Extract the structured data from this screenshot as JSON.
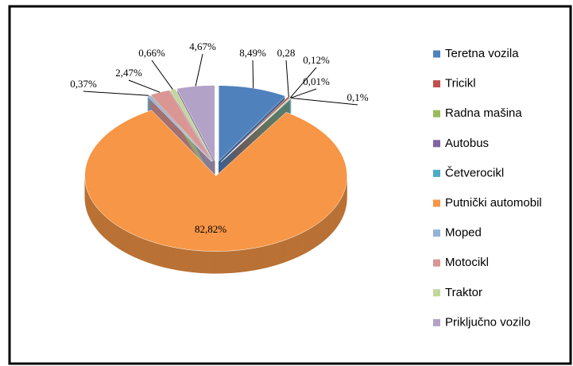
{
  "chart_data": {
    "type": "pie",
    "categories": [
      "Teretna vozila",
      "Tricikl",
      "Radna mašina",
      "Autobus",
      "Četverocikl",
      "Putnički automobil",
      "Moped",
      "Motocikl",
      "Traktor",
      "Priključno vozilo"
    ],
    "values": [
      8.49,
      0.28,
      0.12,
      0.01,
      0.1,
      82.82,
      0.37,
      2.47,
      0.66,
      4.67
    ],
    "value_labels": [
      "8,49%",
      "0,28",
      "0,12%",
      "0,01%",
      "0,1%",
      "82,82%",
      "0,37%",
      "2,47%",
      "0,66%",
      "4,67%"
    ],
    "colors": [
      "#4f81bd",
      "#c0504d",
      "#9bbb59",
      "#8064a2",
      "#4bacc6",
      "#f79646",
      "#95b3d7",
      "#d99694",
      "#c3d69b",
      "#b3a2c7"
    ],
    "legend": "right"
  }
}
